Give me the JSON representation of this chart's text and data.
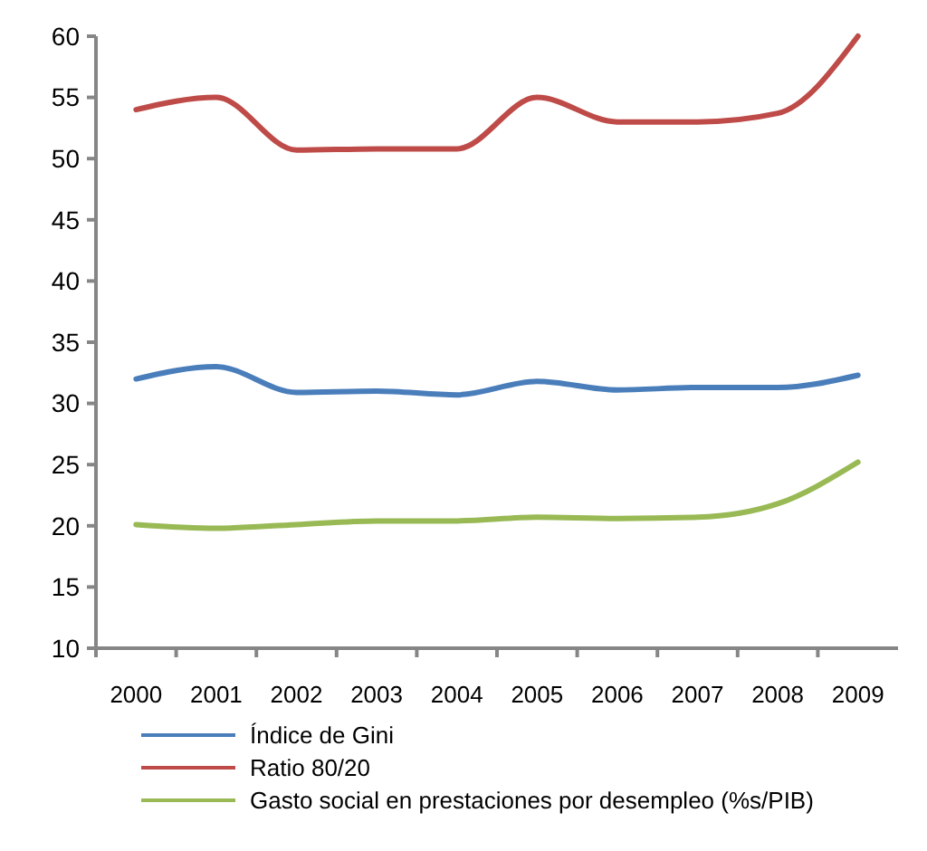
{
  "chart_data": {
    "type": "line",
    "categories": [
      "2000",
      "2001",
      "2002",
      "2003",
      "2004",
      "2005",
      "2006",
      "2007",
      "2008",
      "2009"
    ],
    "series": [
      {
        "name": "Índice de Gini",
        "color": "#4a7ebb",
        "values": [
          32,
          33,
          30.9,
          31,
          30.7,
          31.8,
          31.1,
          31.3,
          31.3,
          32.3
        ]
      },
      {
        "name": "Ratio 80/20",
        "color": "#be4b48",
        "values": [
          54,
          55,
          50.7,
          50.8,
          50.8,
          55,
          53,
          53,
          53.7,
          60
        ]
      },
      {
        "name": "Gasto social en prestaciones por desempleo (%s/PIB)",
        "color": "#98b954",
        "values": [
          20.1,
          19.8,
          20.1,
          20.4,
          20.4,
          20.7,
          20.6,
          20.7,
          21.8,
          25.2
        ]
      }
    ],
    "ylim": [
      10,
      60
    ],
    "yticks": [
      10,
      15,
      20,
      25,
      30,
      35,
      40,
      45,
      50,
      55,
      60
    ],
    "grid": false,
    "legend": "bottom",
    "marker": "none",
    "line_style": "solid"
  }
}
